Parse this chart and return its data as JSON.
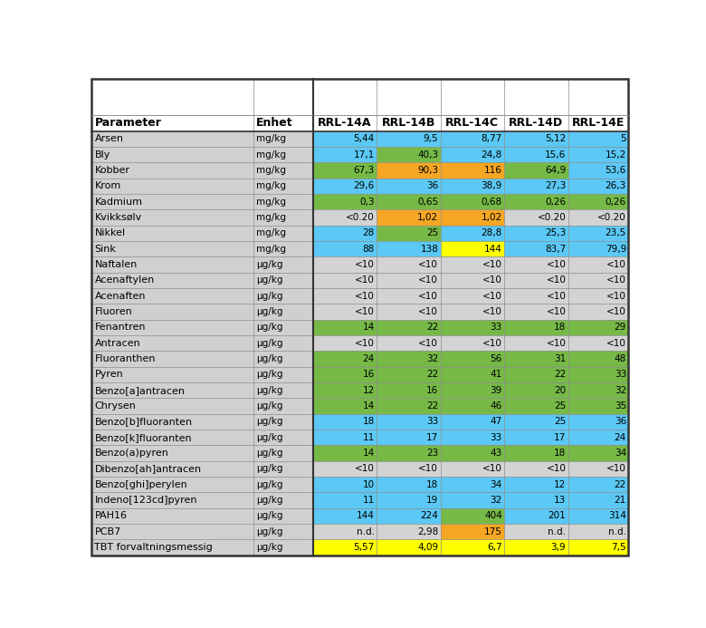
{
  "columns": [
    "Parameter",
    "Enhet",
    "RRL-14A",
    "RRL-14B",
    "RRL-14C",
    "RRL-14D",
    "RRL-14E"
  ],
  "rows": [
    {
      "param": "Arsen",
      "enhet": "mg/kg",
      "vals": [
        "5,44",
        "9,5",
        "8,77",
        "5,12",
        "5"
      ],
      "colors": [
        "#5BC8F5",
        "#5BC8F5",
        "#5BC8F5",
        "#5BC8F5",
        "#5BC8F5"
      ]
    },
    {
      "param": "Bly",
      "enhet": "mg/kg",
      "vals": [
        "17,1",
        "40,3",
        "24,8",
        "15,6",
        "15,2"
      ],
      "colors": [
        "#5BC8F5",
        "#76B947",
        "#5BC8F5",
        "#5BC8F5",
        "#5BC8F5"
      ]
    },
    {
      "param": "Kobber",
      "enhet": "mg/kg",
      "vals": [
        "67,3",
        "90,3",
        "116",
        "64,9",
        "53,6"
      ],
      "colors": [
        "#76B947",
        "#F5A623",
        "#F5A623",
        "#76B947",
        "#5BC8F5"
      ]
    },
    {
      "param": "Krom",
      "enhet": "mg/kg",
      "vals": [
        "29,6",
        "36",
        "38,9",
        "27,3",
        "26,3"
      ],
      "colors": [
        "#5BC8F5",
        "#5BC8F5",
        "#5BC8F5",
        "#5BC8F5",
        "#5BC8F5"
      ]
    },
    {
      "param": "Kadmium",
      "enhet": "mg/kg",
      "vals": [
        "0,3",
        "0,65",
        "0,68",
        "0,26",
        "0,26"
      ],
      "colors": [
        "#76B947",
        "#76B947",
        "#76B947",
        "#76B947",
        "#76B947"
      ]
    },
    {
      "param": "Kvikksølv",
      "enhet": "mg/kg",
      "vals": [
        "<0.20",
        "1,02",
        "1,02",
        "<0.20",
        "<0.20"
      ],
      "colors": [
        "#D3D3D3",
        "#F5A623",
        "#F5A623",
        "#D3D3D3",
        "#D3D3D3"
      ]
    },
    {
      "param": "Nikkel",
      "enhet": "mg/kg",
      "vals": [
        "28",
        "25",
        "28,8",
        "25,3",
        "23,5"
      ],
      "colors": [
        "#5BC8F5",
        "#76B947",
        "#5BC8F5",
        "#5BC8F5",
        "#5BC8F5"
      ]
    },
    {
      "param": "Sink",
      "enhet": "mg/kg",
      "vals": [
        "88",
        "138",
        "144",
        "83,7",
        "79,9"
      ],
      "colors": [
        "#5BC8F5",
        "#5BC8F5",
        "#FFFF00",
        "#5BC8F5",
        "#5BC8F5"
      ]
    },
    {
      "param": "Naftalen",
      "enhet": "μg/kg",
      "vals": [
        "<10",
        "<10",
        "<10",
        "<10",
        "<10"
      ],
      "colors": [
        "#D3D3D3",
        "#D3D3D3",
        "#D3D3D3",
        "#D3D3D3",
        "#D3D3D3"
      ]
    },
    {
      "param": "Acenaftylen",
      "enhet": "μg/kg",
      "vals": [
        "<10",
        "<10",
        "<10",
        "<10",
        "<10"
      ],
      "colors": [
        "#D3D3D3",
        "#D3D3D3",
        "#D3D3D3",
        "#D3D3D3",
        "#D3D3D3"
      ]
    },
    {
      "param": "Acenaften",
      "enhet": "μg/kg",
      "vals": [
        "<10",
        "<10",
        "<10",
        "<10",
        "<10"
      ],
      "colors": [
        "#D3D3D3",
        "#D3D3D3",
        "#D3D3D3",
        "#D3D3D3",
        "#D3D3D3"
      ]
    },
    {
      "param": "Fluoren",
      "enhet": "μg/kg",
      "vals": [
        "<10",
        "<10",
        "<10",
        "<10",
        "<10"
      ],
      "colors": [
        "#D3D3D3",
        "#D3D3D3",
        "#D3D3D3",
        "#D3D3D3",
        "#D3D3D3"
      ]
    },
    {
      "param": "Fenantren",
      "enhet": "μg/kg",
      "vals": [
        "14",
        "22",
        "33",
        "18",
        "29"
      ],
      "colors": [
        "#76B947",
        "#76B947",
        "#76B947",
        "#76B947",
        "#76B947"
      ]
    },
    {
      "param": "Antracen",
      "enhet": "μg/kg",
      "vals": [
        "<10",
        "<10",
        "<10",
        "<10",
        "<10"
      ],
      "colors": [
        "#D3D3D3",
        "#D3D3D3",
        "#D3D3D3",
        "#D3D3D3",
        "#D3D3D3"
      ]
    },
    {
      "param": "Fluoranthen",
      "enhet": "μg/kg",
      "vals": [
        "24",
        "32",
        "56",
        "31",
        "48"
      ],
      "colors": [
        "#76B947",
        "#76B947",
        "#76B947",
        "#76B947",
        "#76B947"
      ]
    },
    {
      "param": "Pyren",
      "enhet": "μg/kg",
      "vals": [
        "16",
        "22",
        "41",
        "22",
        "33"
      ],
      "colors": [
        "#76B947",
        "#76B947",
        "#76B947",
        "#76B947",
        "#76B947"
      ]
    },
    {
      "param": "Benzo[a]antracen",
      "enhet": "μg/kg",
      "vals": [
        "12",
        "16",
        "39",
        "20",
        "32"
      ],
      "colors": [
        "#76B947",
        "#76B947",
        "#76B947",
        "#76B947",
        "#76B947"
      ]
    },
    {
      "param": "Chrysen",
      "enhet": "μg/kg",
      "vals": [
        "14",
        "22",
        "46",
        "25",
        "35"
      ],
      "colors": [
        "#76B947",
        "#76B947",
        "#76B947",
        "#76B947",
        "#76B947"
      ]
    },
    {
      "param": "Benzo[b]fluoranten",
      "enhet": "μg/kg",
      "vals": [
        "18",
        "33",
        "47",
        "25",
        "36"
      ],
      "colors": [
        "#5BC8F5",
        "#5BC8F5",
        "#5BC8F5",
        "#5BC8F5",
        "#5BC8F5"
      ]
    },
    {
      "param": "Benzo[k]fluoranten",
      "enhet": "μg/kg",
      "vals": [
        "11",
        "17",
        "33",
        "17",
        "24"
      ],
      "colors": [
        "#5BC8F5",
        "#5BC8F5",
        "#5BC8F5",
        "#5BC8F5",
        "#5BC8F5"
      ]
    },
    {
      "param": "Benzo(a)pyren",
      "enhet": "μg/kg",
      "vals": [
        "14",
        "23",
        "43",
        "18",
        "34"
      ],
      "colors": [
        "#76B947",
        "#76B947",
        "#76B947",
        "#76B947",
        "#76B947"
      ]
    },
    {
      "param": "Dibenzo[ah]antracen",
      "enhet": "μg/kg",
      "vals": [
        "<10",
        "<10",
        "<10",
        "<10",
        "<10"
      ],
      "colors": [
        "#D3D3D3",
        "#D3D3D3",
        "#D3D3D3",
        "#D3D3D3",
        "#D3D3D3"
      ]
    },
    {
      "param": "Benzo[ghi]perylen",
      "enhet": "μg/kg",
      "vals": [
        "10",
        "18",
        "34",
        "12",
        "22"
      ],
      "colors": [
        "#5BC8F5",
        "#5BC8F5",
        "#5BC8F5",
        "#5BC8F5",
        "#5BC8F5"
      ]
    },
    {
      "param": "Indeno[123cd]pyren",
      "enhet": "μg/kg",
      "vals": [
        "11",
        "19",
        "32",
        "13",
        "21"
      ],
      "colors": [
        "#5BC8F5",
        "#5BC8F5",
        "#5BC8F5",
        "#5BC8F5",
        "#5BC8F5"
      ]
    },
    {
      "param": "PAH16",
      "enhet": "μg/kg",
      "vals": [
        "144",
        "224",
        "404",
        "201",
        "314"
      ],
      "colors": [
        "#5BC8F5",
        "#5BC8F5",
        "#76B947",
        "#5BC8F5",
        "#5BC8F5"
      ]
    },
    {
      "param": "PCB7",
      "enhet": "μg/kg",
      "vals": [
        "n.d.",
        "2,98",
        "175",
        "n.d.",
        "n.d."
      ],
      "colors": [
        "#D3D3D3",
        "#D3D3D3",
        "#F5A623",
        "#D3D3D3",
        "#D3D3D3"
      ]
    },
    {
      "param": "TBT forvaltningsmessig",
      "enhet": "μg/kg",
      "vals": [
        "5,57",
        "4,09",
        "6,7",
        "3,9",
        "7,5"
      ],
      "colors": [
        "#FFFF00",
        "#FFFF00",
        "#FFFF00",
        "#FFFF00",
        "#FFFF00"
      ]
    }
  ],
  "param_col_bg": "#D0D0D0",
  "enhet_col_bg": "#D0D0D0",
  "header_bg": "#FFFFFF",
  "blank_bg": "#FFFFFF",
  "gray_data_bg": "#D3D3D3",
  "font_size": 8.0,
  "header_font_size": 9.0,
  "fig_width": 7.8,
  "fig_height": 6.93,
  "dpi": 100
}
